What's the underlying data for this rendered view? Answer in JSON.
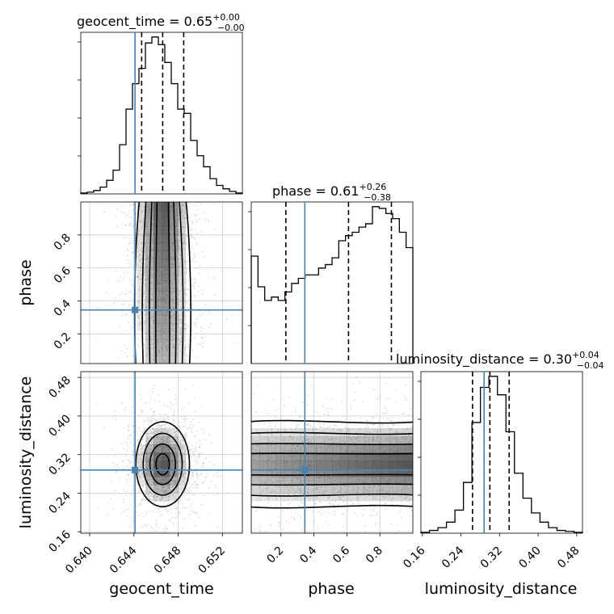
{
  "chart_data": {
    "type": "corner",
    "parameters": [
      "geocent_time",
      "phase",
      "luminosity_distance"
    ],
    "axis_labels": {
      "geocent_time": "geocent_time",
      "phase": "phase",
      "luminosity_distance": "luminosity_distance"
    },
    "ranges": {
      "geocent_time": [
        0.6392,
        0.6538
      ],
      "phase": [
        0.02,
        1.0
      ],
      "luminosity_distance": [
        0.157,
        0.492
      ]
    },
    "ticks": {
      "geocent_time": [
        "0.640",
        "0.644",
        "0.648",
        "0.652"
      ],
      "phase": [
        "0.2",
        "0.4",
        "0.6",
        "0.8"
      ],
      "luminosity_distance": [
        "0.16",
        "0.24",
        "0.32",
        "0.40",
        "0.48"
      ]
    },
    "truths": {
      "geocent_time": 0.6441,
      "phase": 0.345,
      "luminosity_distance": 0.288
    },
    "truth_color": "#4682b4",
    "titles": [
      {
        "param": "geocent_time",
        "name": "geocent_time = 0.65",
        "sup": "+0.00",
        "sub": "−0.00"
      },
      {
        "param": "phase",
        "name": "phase = 0.61",
        "sup": "+0.26",
        "sub": "−0.38"
      },
      {
        "param": "luminosity_distance",
        "name": "luminosity_distance = 0.30",
        "sup": "+0.04",
        "sub": "−0.04"
      }
    ],
    "quantiles": {
      "geocent_time": [
        0.6447,
        0.6466,
        0.6485
      ],
      "phase": [
        0.23,
        0.61,
        0.87
      ],
      "luminosity_distance": [
        0.264,
        0.3,
        0.34
      ]
    },
    "histograms": {
      "geocent_time": [
        1,
        2,
        4,
        8,
        16,
        28,
        58,
        100,
        130,
        148,
        178,
        185,
        176,
        155,
        130,
        100,
        95,
        63,
        45,
        32,
        18,
        10,
        6,
        3,
        1
      ],
      "phase": [
        0.63,
        0.45,
        0.37,
        0.39,
        0.37,
        0.42,
        0.47,
        0.5,
        0.52,
        0.52,
        0.56,
        0.58,
        0.62,
        0.72,
        0.75,
        0.77,
        0.8,
        0.82,
        0.92,
        0.91,
        0.88,
        0.85,
        0.77,
        0.68
      ],
      "luminosity_distance": [
        1,
        3,
        6,
        12,
        25,
        55,
        120,
        158,
        170,
        150,
        110,
        65,
        38,
        22,
        12,
        6,
        3,
        2,
        1
      ]
    },
    "grid": true,
    "colors": {
      "hist": "#000000",
      "contour": "#000000",
      "density": "#4a4a4a",
      "points": "#9a9a9a"
    }
  }
}
